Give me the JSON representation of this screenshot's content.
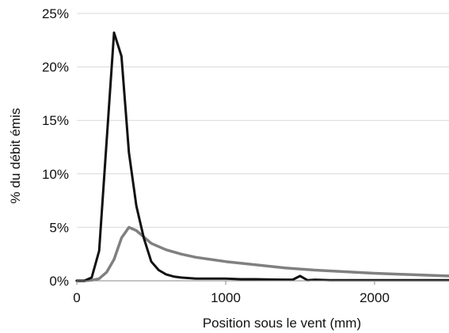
{
  "chart_data": {
    "type": "line",
    "xlabel": "Position sous le vent (mm)",
    "ylabel": "% du débit émis",
    "xlim": [
      0,
      2500
    ],
    "ylim": [
      0,
      25
    ],
    "xticks": [
      0,
      1000,
      2000
    ],
    "xtick_labels": [
      "0",
      "1000",
      "2000"
    ],
    "yticks": [
      0,
      5,
      10,
      15,
      20,
      25
    ],
    "ytick_labels": [
      "0%",
      "5%",
      "10%",
      "15%",
      "20%",
      "25%"
    ],
    "grid": "horizontal",
    "legend": "none",
    "series": [
      {
        "color": "#111111",
        "x": [
          0,
          50,
          100,
          150,
          200,
          250,
          300,
          350,
          400,
          450,
          500,
          550,
          600,
          650,
          700,
          800,
          900,
          1000,
          1100,
          1200,
          1300,
          1400,
          1450,
          1500,
          1550,
          1600,
          1700,
          1800,
          2000,
          2200,
          2400,
          2500
        ],
        "values": [
          0,
          0,
          0.3,
          2.8,
          13.0,
          23.2,
          21.0,
          12.0,
          7.0,
          4.0,
          1.8,
          1.0,
          0.6,
          0.4,
          0.3,
          0.2,
          0.2,
          0.2,
          0.15,
          0.15,
          0.12,
          0.1,
          0.1,
          0.45,
          0.05,
          0.1,
          0.05,
          0.05,
          0.05,
          0.05,
          0.05,
          0.05
        ]
      },
      {
        "color": "#808080",
        "x": [
          0,
          50,
          100,
          150,
          200,
          250,
          300,
          350,
          400,
          450,
          500,
          600,
          700,
          800,
          900,
          1000,
          1200,
          1400,
          1600,
          1800,
          2000,
          2200,
          2400,
          2500
        ],
        "values": [
          0,
          0,
          0.05,
          0.2,
          0.8,
          2.0,
          4.0,
          5.0,
          4.7,
          4.1,
          3.5,
          2.9,
          2.5,
          2.2,
          2.0,
          1.8,
          1.5,
          1.2,
          1.0,
          0.85,
          0.7,
          0.6,
          0.5,
          0.45
        ]
      }
    ]
  }
}
